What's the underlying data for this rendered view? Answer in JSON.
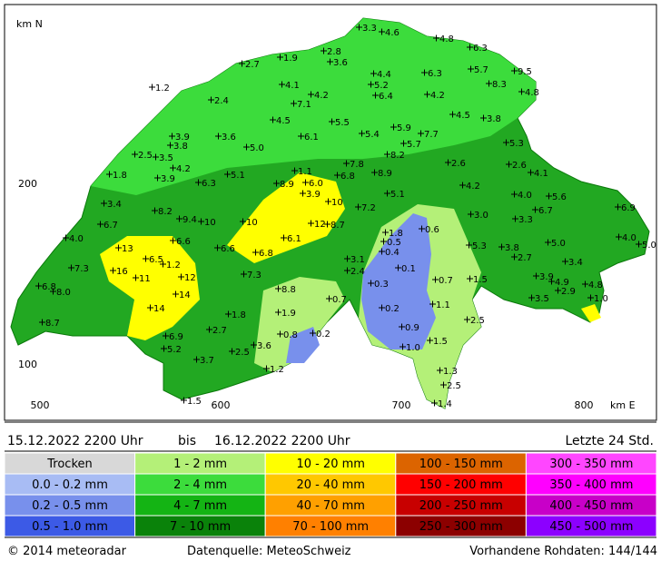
{
  "map": {
    "north_label": "km N",
    "east_label": "km E",
    "y_labels": [
      "200",
      "100"
    ],
    "x_labels": [
      "500",
      "600",
      "700",
      "800"
    ],
    "stations": [
      "3.3",
      "4.6",
      "4.8",
      "6.3",
      "2.8",
      "3.6",
      "1.9",
      "2.7",
      "4.4",
      "5.7",
      "9.5",
      "6.3",
      "5.2",
      "8.3",
      "4.8",
      "1.2",
      "4.1",
      "6.4",
      "4.2",
      "4.2",
      "7.1",
      "2.4",
      "5.5",
      "4.5",
      "3.8",
      "4.5",
      "5.9",
      "7.7",
      "3.9",
      "3.6",
      "6.1",
      "5.4",
      "5.7",
      "5.3",
      "3.8",
      "5.0",
      "2.5",
      "3.5",
      "8.2",
      "4.2",
      "7.8",
      "2.6",
      "2.6",
      "4.1",
      "1.8",
      "3.9",
      "5.1",
      "1.1",
      "6.8",
      "8.9",
      "6.3",
      "8.9",
      "6.0",
      "4.2",
      "4.0",
      "5.6",
      "3.9",
      "5.1",
      "3.4",
      "6.9",
      "10",
      "7.2",
      "6.7",
      "8.2",
      "3.0",
      "3.3",
      "9.4",
      "10",
      "10",
      "12",
      "8.7",
      "6.7",
      "1.8",
      "0.6",
      "4.0",
      "6.6",
      "6.1",
      "0.5",
      "5.0",
      "4.0",
      "5.0",
      "13",
      "6.6",
      "6.8",
      "5.3",
      "3.8",
      "0.4",
      "2.7",
      "3.1",
      "3.4",
      "7.3",
      "16",
      "6.5",
      "1.2",
      "0.1",
      "2.4",
      "7.3",
      "12",
      "11",
      "1.5",
      "0.7",
      "3.9",
      "4.9",
      "4.8",
      "6.8",
      "8.0",
      "2.9",
      "0.3",
      "14",
      "8.8",
      "0.7",
      "1.0",
      "3.5",
      "1.1",
      "14",
      "0.2",
      "1.8",
      "1.9",
      "2.5",
      "8.7",
      "0.9",
      "2.7",
      "0.8",
      "0.2",
      "6.9",
      "1.5",
      "5.2",
      "3.6",
      "1.0",
      "2.5",
      "3.7",
      "1.2",
      "1.3",
      "2.5",
      "1.5",
      "1.4"
    ]
  },
  "period": {
    "from": "15.12.2022 2200 Uhr",
    "bis": "bis",
    "to": "16.12.2022 2200 Uhr",
    "span": "Letzte 24 Std."
  },
  "legend": [
    [
      {
        "label": "Trocken",
        "color": "#d8d8d8"
      },
      {
        "label": "0.0 - 0.2 mm",
        "color": "#a8bcf4"
      },
      {
        "label": "0.2 - 0.5 mm",
        "color": "#7890ec"
      },
      {
        "label": "0.5 - 1.0 mm",
        "color": "#3c5ae6"
      }
    ],
    [
      {
        "label": "1 - 2 mm",
        "color": "#b4f078"
      },
      {
        "label": "2 - 4 mm",
        "color": "#3cdc3c"
      },
      {
        "label": "4 - 7 mm",
        "color": "#14b414"
      },
      {
        "label": "7 - 10 mm",
        "color": "#0a820a"
      }
    ],
    [
      {
        "label": "10 - 20 mm",
        "color": "#ffff00"
      },
      {
        "label": "20 - 40 mm",
        "color": "#ffc800"
      },
      {
        "label": "40 - 70 mm",
        "color": "#ffa000"
      },
      {
        "label": "70 - 100 mm",
        "color": "#ff8000"
      }
    ],
    [
      {
        "label": "100 - 150 mm",
        "color": "#dc6400"
      },
      {
        "label": "150 - 200 mm",
        "color": "#ff0000"
      },
      {
        "label": "200 - 250 mm",
        "color": "#c80000"
      },
      {
        "label": "250 - 300 mm",
        "color": "#8c0000"
      }
    ],
    [
      {
        "label": "300 - 350 mm",
        "color": "#ff46ff"
      },
      {
        "label": "350 - 400 mm",
        "color": "#ff00ff"
      },
      {
        "label": "400 - 450 mm",
        "color": "#c800c8"
      },
      {
        "label": "450 - 500 mm",
        "color": "#8c00ff"
      }
    ]
  ],
  "footer": {
    "copyright": "© 2014 meteoradar",
    "source": "Datenquelle: MeteoSchweiz",
    "raw": "Vorhandene Rohdaten: 144/144"
  }
}
